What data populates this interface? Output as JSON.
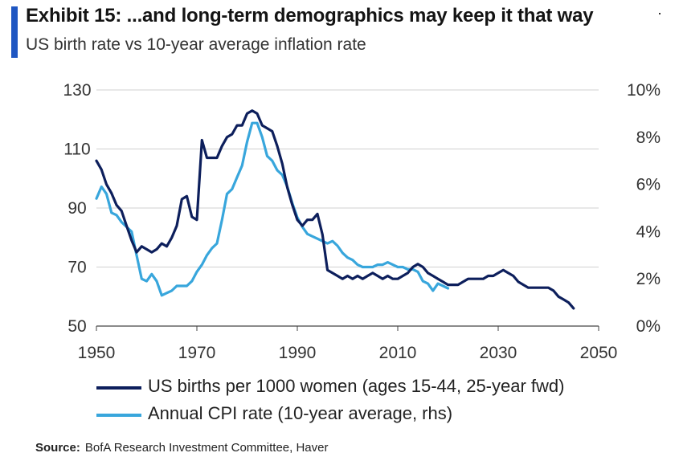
{
  "header": {
    "title": "Exhibit 15: ...and long-term demographics may keep it that way",
    "subtitle": "US birth rate vs 10-year average inflation rate"
  },
  "source": {
    "label": "Source:",
    "text": "BofA Research Investment Committee, Haver"
  },
  "chart_data": {
    "type": "line",
    "title": "Exhibit 15: ...and long-term demographics may keep it that way",
    "subtitle": "US birth rate vs 10-year average inflation rate",
    "xlim": [
      1950,
      2050
    ],
    "ylim_left": [
      50,
      130
    ],
    "ylim_right": [
      0,
      10
    ],
    "x_ticks": [
      1950,
      1970,
      1990,
      2010,
      2030,
      2050
    ],
    "x_tick_labels": [
      "1950",
      "1970",
      "1990",
      "2010",
      "2030",
      "2050"
    ],
    "y_left_ticks": [
      50,
      70,
      90,
      110,
      130
    ],
    "y_left_tick_labels": [
      "50",
      "70",
      "90",
      "110",
      "130"
    ],
    "y_right_ticks": [
      0,
      2,
      4,
      6,
      8,
      10
    ],
    "y_right_tick_labels": [
      "0%",
      "2%",
      "4%",
      "6%",
      "8%",
      "10%"
    ],
    "grid": "horizontal",
    "legend_position": "bottom",
    "series": [
      {
        "name": "US births per 1000 women (ages 15-44, 25-year fwd)",
        "axis": "left",
        "color": "#0d1f5c",
        "points": [
          [
            1950,
            106
          ],
          [
            1951,
            103
          ],
          [
            1952,
            98
          ],
          [
            1953,
            95
          ],
          [
            1954,
            91
          ],
          [
            1955,
            89
          ],
          [
            1956,
            84
          ],
          [
            1957,
            79
          ],
          [
            1958,
            75
          ],
          [
            1959,
            77
          ],
          [
            1960,
            76
          ],
          [
            1961,
            75
          ],
          [
            1962,
            76
          ],
          [
            1963,
            78
          ],
          [
            1964,
            77
          ],
          [
            1965,
            80
          ],
          [
            1966,
            84
          ],
          [
            1967,
            93
          ],
          [
            1968,
            94
          ],
          [
            1969,
            87
          ],
          [
            1970,
            86
          ],
          [
            1971,
            113
          ],
          [
            1972,
            107
          ],
          [
            1973,
            107
          ],
          [
            1974,
            107
          ],
          [
            1975,
            111
          ],
          [
            1976,
            114
          ],
          [
            1977,
            115
          ],
          [
            1978,
            118
          ],
          [
            1979,
            118
          ],
          [
            1980,
            122
          ],
          [
            1981,
            123
          ],
          [
            1982,
            122
          ],
          [
            1983,
            118
          ],
          [
            1984,
            117
          ],
          [
            1985,
            116
          ],
          [
            1986,
            111
          ],
          [
            1987,
            105
          ],
          [
            1988,
            97
          ],
          [
            1989,
            91
          ],
          [
            1990,
            86
          ],
          [
            1991,
            84
          ],
          [
            1992,
            86
          ],
          [
            1993,
            86
          ],
          [
            1994,
            88
          ],
          [
            1995,
            81
          ],
          [
            1996,
            69
          ],
          [
            1997,
            68
          ],
          [
            1998,
            67
          ],
          [
            1999,
            66
          ],
          [
            2000,
            67
          ],
          [
            2001,
            66
          ],
          [
            2002,
            67
          ],
          [
            2003,
            66
          ],
          [
            2004,
            67
          ],
          [
            2005,
            68
          ],
          [
            2006,
            67
          ],
          [
            2007,
            66
          ],
          [
            2008,
            67
          ],
          [
            2009,
            66
          ],
          [
            2010,
            66
          ],
          [
            2011,
            67
          ],
          [
            2012,
            68
          ],
          [
            2013,
            70
          ],
          [
            2014,
            71
          ],
          [
            2015,
            70
          ],
          [
            2016,
            68
          ],
          [
            2017,
            67
          ],
          [
            2018,
            66
          ],
          [
            2019,
            65
          ],
          [
            2020,
            64
          ],
          [
            2021,
            64
          ],
          [
            2022,
            64
          ],
          [
            2023,
            65
          ],
          [
            2024,
            66
          ],
          [
            2025,
            66
          ],
          [
            2026,
            66
          ],
          [
            2027,
            66
          ],
          [
            2028,
            67
          ],
          [
            2029,
            67
          ],
          [
            2030,
            68
          ],
          [
            2031,
            69
          ],
          [
            2032,
            68
          ],
          [
            2033,
            67
          ],
          [
            2034,
            65
          ],
          [
            2035,
            64
          ],
          [
            2036,
            63
          ],
          [
            2037,
            63
          ],
          [
            2038,
            63
          ],
          [
            2039,
            63
          ],
          [
            2040,
            63
          ],
          [
            2041,
            62
          ],
          [
            2042,
            60
          ],
          [
            2043,
            59
          ],
          [
            2044,
            58
          ],
          [
            2045,
            56
          ]
        ]
      },
      {
        "name": "Annual CPI rate (10-year average, rhs)",
        "axis": "right",
        "color": "#38a6dc",
        "points": [
          [
            1950,
            5.4
          ],
          [
            1951,
            5.9
          ],
          [
            1952,
            5.6
          ],
          [
            1953,
            4.8
          ],
          [
            1954,
            4.7
          ],
          [
            1955,
            4.4
          ],
          [
            1956,
            4.2
          ],
          [
            1957,
            4.0
          ],
          [
            1958,
            3.0
          ],
          [
            1959,
            2.0
          ],
          [
            1960,
            1.9
          ],
          [
            1961,
            2.2
          ],
          [
            1962,
            1.9
          ],
          [
            1963,
            1.3
          ],
          [
            1964,
            1.4
          ],
          [
            1965,
            1.5
          ],
          [
            1966,
            1.7
          ],
          [
            1967,
            1.7
          ],
          [
            1968,
            1.7
          ],
          [
            1969,
            1.9
          ],
          [
            1970,
            2.3
          ],
          [
            1971,
            2.6
          ],
          [
            1972,
            3.0
          ],
          [
            1973,
            3.3
          ],
          [
            1974,
            3.5
          ],
          [
            1975,
            4.5
          ],
          [
            1976,
            5.6
          ],
          [
            1977,
            5.8
          ],
          [
            1978,
            6.3
          ],
          [
            1979,
            6.8
          ],
          [
            1980,
            7.8
          ],
          [
            1981,
            8.6
          ],
          [
            1982,
            8.6
          ],
          [
            1983,
            8.0
          ],
          [
            1984,
            7.2
          ],
          [
            1985,
            7.0
          ],
          [
            1986,
            6.6
          ],
          [
            1987,
            6.4
          ],
          [
            1988,
            5.9
          ],
          [
            1989,
            5.2
          ],
          [
            1990,
            4.6
          ],
          [
            1991,
            4.2
          ],
          [
            1992,
            3.9
          ],
          [
            1993,
            3.8
          ],
          [
            1994,
            3.7
          ],
          [
            1995,
            3.6
          ],
          [
            1996,
            3.5
          ],
          [
            1997,
            3.6
          ],
          [
            1998,
            3.4
          ],
          [
            1999,
            3.1
          ],
          [
            2000,
            2.9
          ],
          [
            2001,
            2.8
          ],
          [
            2002,
            2.6
          ],
          [
            2003,
            2.5
          ],
          [
            2004,
            2.5
          ],
          [
            2005,
            2.5
          ],
          [
            2006,
            2.6
          ],
          [
            2007,
            2.6
          ],
          [
            2008,
            2.7
          ],
          [
            2009,
            2.6
          ],
          [
            2010,
            2.5
          ],
          [
            2011,
            2.5
          ],
          [
            2012,
            2.4
          ],
          [
            2013,
            2.4
          ],
          [
            2014,
            2.3
          ],
          [
            2015,
            1.9
          ],
          [
            2016,
            1.8
          ],
          [
            2017,
            1.5
          ],
          [
            2018,
            1.8
          ],
          [
            2019,
            1.7
          ],
          [
            2020,
            1.6
          ]
        ]
      }
    ]
  }
}
